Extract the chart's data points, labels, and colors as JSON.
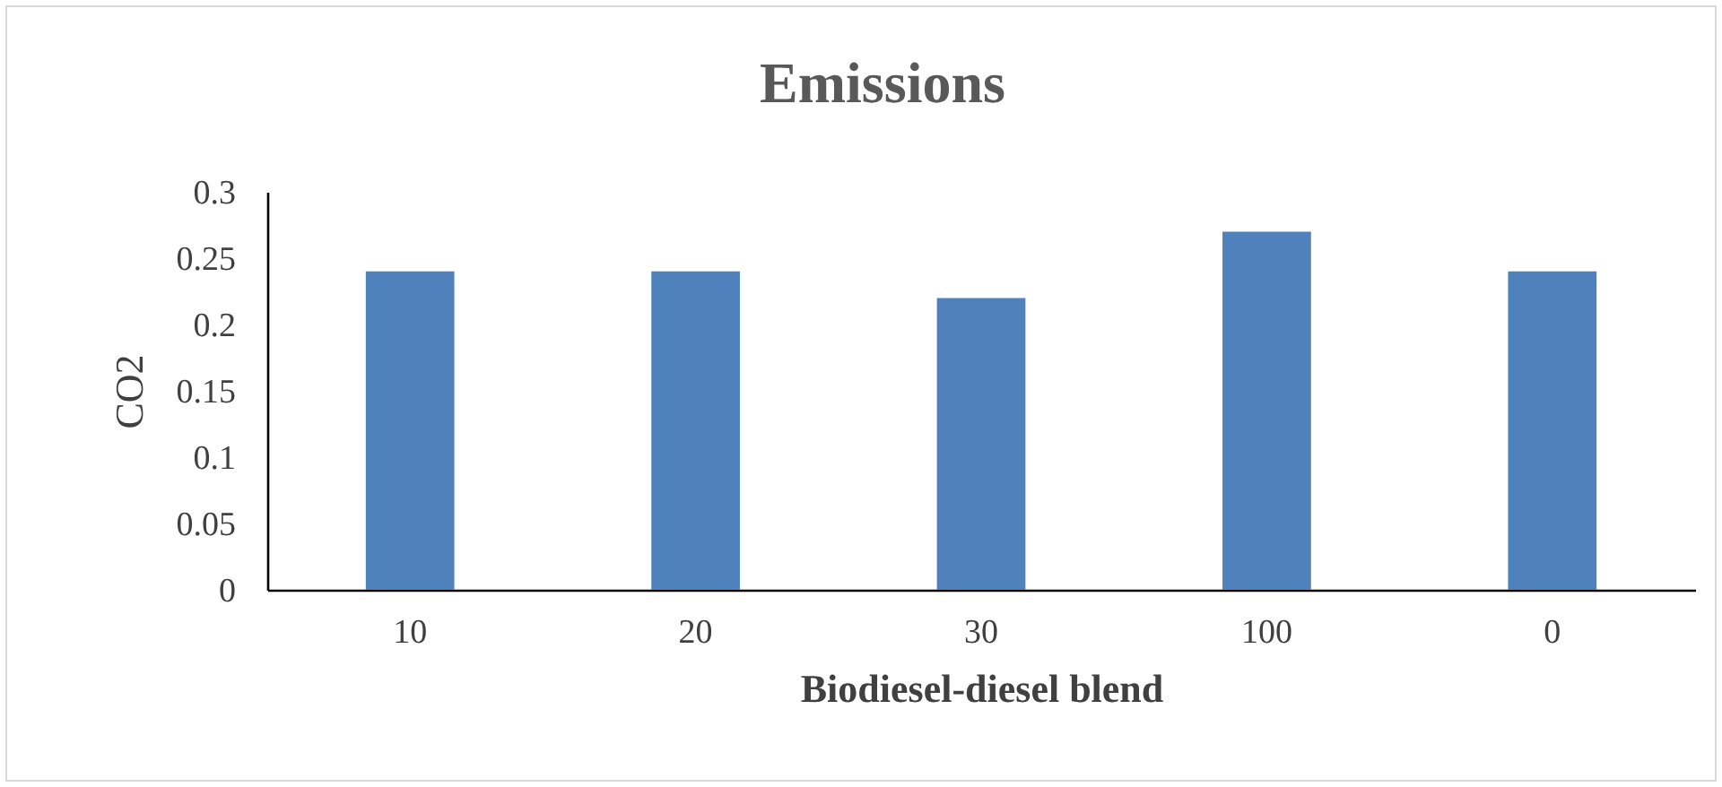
{
  "chart_data": {
    "type": "bar",
    "title": "Emissions",
    "xlabel": "Biodiesel-diesel blend",
    "ylabel": "CO2",
    "categories": [
      "10",
      "20",
      "30",
      "100",
      "0"
    ],
    "values": [
      0.24,
      0.24,
      0.22,
      0.27,
      0.24
    ],
    "color": "#4f81bd",
    "ylim": [
      0,
      0.3
    ],
    "yticks": [
      0,
      0.05,
      0.1,
      0.15,
      0.2,
      0.25,
      0.3
    ],
    "grid": false
  }
}
